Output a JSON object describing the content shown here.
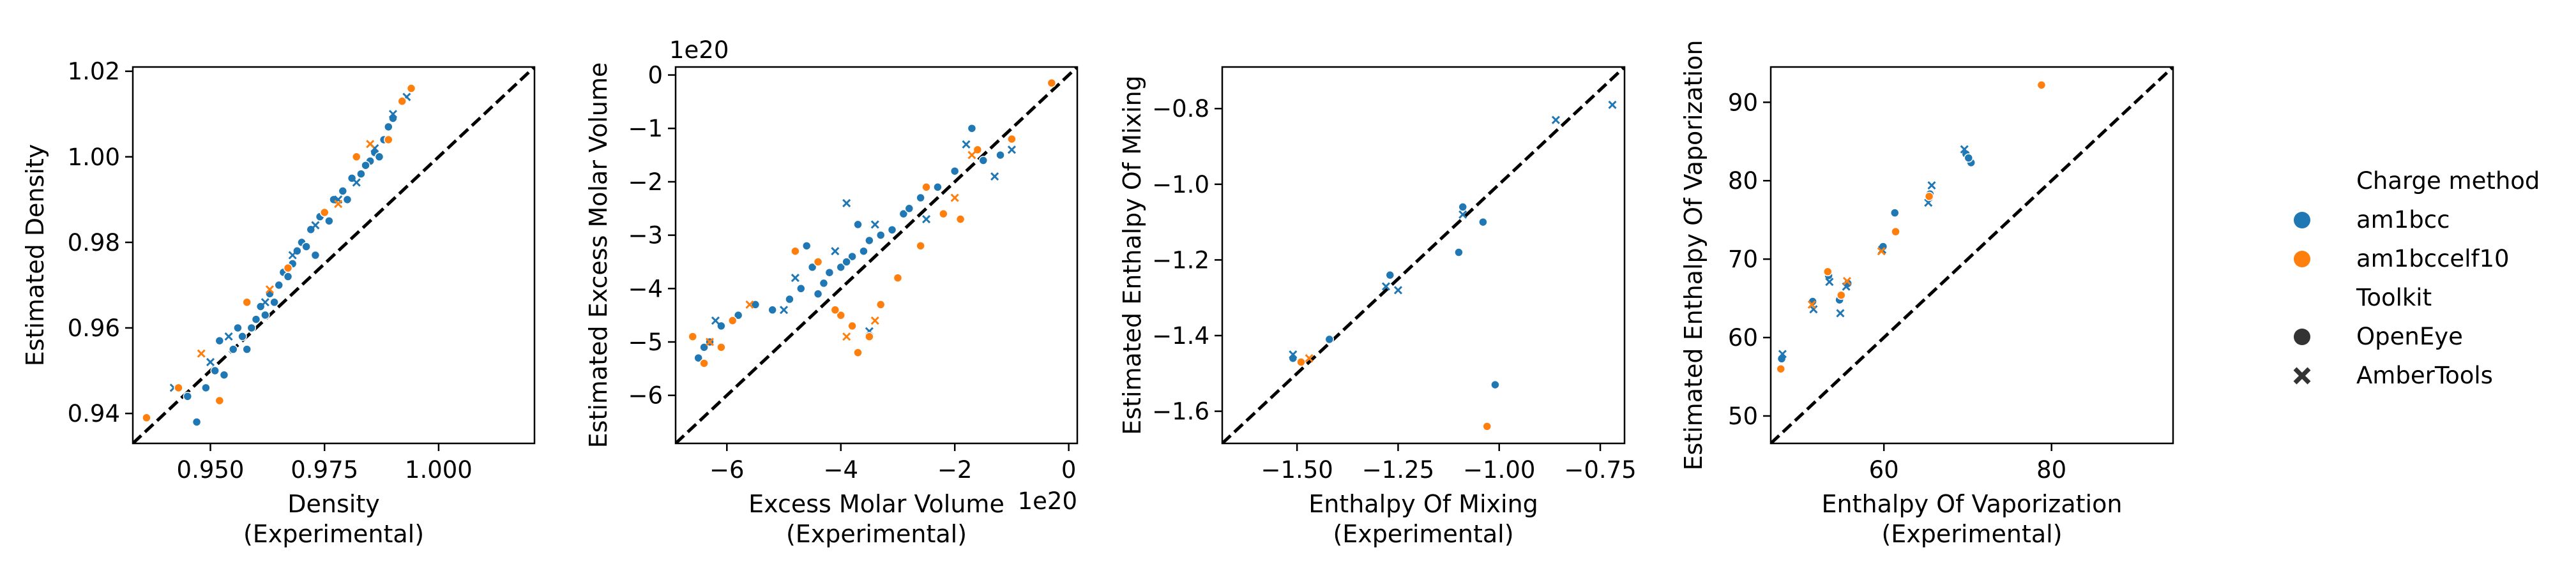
{
  "colors": {
    "am1bcc": "#1f77b4",
    "am1bccelf10": "#ff7f0e",
    "identity": "#000000"
  },
  "legend": {
    "placement": "right",
    "title_charge": "Charge method",
    "charge_methods": [
      "am1bcc",
      "am1bccelf10"
    ],
    "title_toolkit": "Toolkit",
    "toolkits": [
      "OpenEye",
      "AmberTools"
    ]
  },
  "chart_data": [
    {
      "type": "scatter",
      "title": "",
      "xlabel": [
        "Density",
        "(Experimental)"
      ],
      "ylabel": "Estimated Density",
      "xlim": [
        0.933,
        1.021
      ],
      "ylim": [
        0.933,
        1.021
      ],
      "xticks": [
        0.95,
        0.975,
        1.0
      ],
      "xtick_labels": [
        "0.950",
        "0.975",
        "1.000"
      ],
      "yticks": [
        0.94,
        0.96,
        0.98,
        1.0,
        1.02
      ],
      "ytick_labels": [
        "0.94",
        "0.96",
        "0.98",
        "1.00",
        "1.02"
      ],
      "x_offset_label": "",
      "y_offset_label": "",
      "identity_line": true,
      "series": [
        {
          "name": "am1bcc",
          "toolkit": "OpenEye",
          "points": [
            [
              0.945,
              0.944
            ],
            [
              0.947,
              0.938
            ],
            [
              0.949,
              0.946
            ],
            [
              0.951,
              0.95
            ],
            [
              0.953,
              0.949
            ],
            [
              0.955,
              0.955
            ],
            [
              0.957,
              0.958
            ],
            [
              0.959,
              0.96
            ],
            [
              0.96,
              0.962
            ],
            [
              0.962,
              0.963
            ],
            [
              0.963,
              0.968
            ],
            [
              0.965,
              0.97
            ],
            [
              0.966,
              0.973
            ],
            [
              0.968,
              0.975
            ],
            [
              0.969,
              0.978
            ],
            [
              0.97,
              0.98
            ],
            [
              0.972,
              0.983
            ],
            [
              0.974,
              0.986
            ],
            [
              0.975,
              0.987
            ],
            [
              0.977,
              0.99
            ],
            [
              0.979,
              0.992
            ],
            [
              0.981,
              0.995
            ],
            [
              0.983,
              0.996
            ],
            [
              0.985,
              0.999
            ],
            [
              0.986,
              1.001
            ],
            [
              0.988,
              1.004
            ],
            [
              0.989,
              1.007
            ],
            [
              0.99,
              1.009
            ],
            [
              0.952,
              0.957
            ],
            [
              0.956,
              0.96
            ],
            [
              0.961,
              0.965
            ],
            [
              0.967,
              0.972
            ],
            [
              0.971,
              0.979
            ],
            [
              0.976,
              0.985
            ],
            [
              0.98,
              0.99
            ],
            [
              0.984,
              0.998
            ],
            [
              0.987,
              1.0
            ],
            [
              0.958,
              0.955
            ],
            [
              0.964,
              0.966
            ],
            [
              0.973,
              0.977
            ]
          ]
        },
        {
          "name": "am1bcc",
          "toolkit": "AmberTools",
          "points": [
            [
              0.942,
              0.946
            ],
            [
              0.95,
              0.952
            ],
            [
              0.954,
              0.958
            ],
            [
              0.962,
              0.966
            ],
            [
              0.968,
              0.977
            ],
            [
              0.973,
              0.984
            ],
            [
              0.978,
              0.99
            ],
            [
              0.982,
              0.994
            ],
            [
              0.986,
              1.002
            ],
            [
              0.99,
              1.01
            ],
            [
              0.993,
              1.014
            ]
          ]
        },
        {
          "name": "am1bccelf10",
          "toolkit": "OpenEye",
          "points": [
            [
              0.936,
              0.939
            ],
            [
              0.943,
              0.946
            ],
            [
              0.952,
              0.943
            ],
            [
              0.958,
              0.966
            ],
            [
              0.967,
              0.974
            ],
            [
              0.975,
              0.987
            ],
            [
              0.982,
              1.0
            ],
            [
              0.989,
              1.004
            ],
            [
              0.992,
              1.013
            ],
            [
              0.994,
              1.016
            ]
          ]
        },
        {
          "name": "am1bccelf10",
          "toolkit": "AmberTools",
          "points": [
            [
              0.948,
              0.954
            ],
            [
              0.963,
              0.969
            ],
            [
              0.978,
              0.989
            ],
            [
              0.985,
              1.003
            ]
          ]
        }
      ]
    },
    {
      "type": "scatter",
      "title": "",
      "xlabel": [
        "Excess Molar Volume",
        "(Experimental)"
      ],
      "ylabel": "Estimated Excess Molar Volume",
      "xlim": [
        -6.9,
        0.15
      ],
      "ylim": [
        -6.9,
        0.15
      ],
      "xticks": [
        -6,
        -4,
        -2,
        0
      ],
      "xtick_labels": [
        "−6",
        "−4",
        "−2",
        "0"
      ],
      "yticks": [
        -6,
        -5,
        -4,
        -3,
        -2,
        -1,
        0
      ],
      "ytick_labels": [
        "−6",
        "−5",
        "−4",
        "−3",
        "−2",
        "−1",
        "0"
      ],
      "x_offset_label": "1e20",
      "y_offset_label": "1e20",
      "identity_line": true,
      "series": [
        {
          "name": "am1bcc",
          "toolkit": "OpenEye",
          "points": [
            [
              -6.5,
              -5.3
            ],
            [
              -6.3,
              -5.0
            ],
            [
              -6.1,
              -4.7
            ],
            [
              -5.8,
              -4.5
            ],
            [
              -5.5,
              -4.3
            ],
            [
              -5.2,
              -4.4
            ],
            [
              -4.9,
              -4.2
            ],
            [
              -4.7,
              -4.0
            ],
            [
              -4.5,
              -3.6
            ],
            [
              -4.3,
              -3.9
            ],
            [
              -4.2,
              -3.7
            ],
            [
              -4.0,
              -3.6
            ],
            [
              -3.8,
              -3.4
            ],
            [
              -3.6,
              -3.3
            ],
            [
              -3.5,
              -3.1
            ],
            [
              -3.3,
              -3.0
            ],
            [
              -3.1,
              -2.9
            ],
            [
              -2.9,
              -2.6
            ],
            [
              -2.6,
              -2.3
            ],
            [
              -2.3,
              -2.1
            ],
            [
              -2.0,
              -1.8
            ],
            [
              -1.7,
              -1.0
            ],
            [
              -1.5,
              -1.6
            ],
            [
              -1.2,
              -1.5
            ],
            [
              -4.6,
              -3.2
            ],
            [
              -4.4,
              -4.1
            ],
            [
              -3.9,
              -3.5
            ],
            [
              -3.7,
              -2.8
            ],
            [
              -2.8,
              -2.5
            ],
            [
              -6.4,
              -5.1
            ]
          ]
        },
        {
          "name": "am1bcc",
          "toolkit": "AmberTools",
          "points": [
            [
              -6.2,
              -4.6
            ],
            [
              -5.0,
              -4.4
            ],
            [
              -4.8,
              -3.8
            ],
            [
              -4.1,
              -3.3
            ],
            [
              -3.9,
              -2.4
            ],
            [
              -3.4,
              -2.8
            ],
            [
              -2.5,
              -2.7
            ],
            [
              -1.8,
              -1.3
            ],
            [
              -1.3,
              -1.9
            ],
            [
              -1.0,
              -1.4
            ],
            [
              -3.5,
              -4.8
            ]
          ]
        },
        {
          "name": "am1bccelf10",
          "toolkit": "OpenEye",
          "points": [
            [
              -6.6,
              -4.9
            ],
            [
              -6.4,
              -5.4
            ],
            [
              -6.1,
              -5.1
            ],
            [
              -5.9,
              -4.6
            ],
            [
              -4.8,
              -3.3
            ],
            [
              -4.4,
              -3.5
            ],
            [
              -4.0,
              -4.5
            ],
            [
              -3.8,
              -4.7
            ],
            [
              -3.7,
              -5.2
            ],
            [
              -3.5,
              -4.9
            ],
            [
              -3.3,
              -4.3
            ],
            [
              -3.0,
              -3.8
            ],
            [
              -2.6,
              -3.2
            ],
            [
              -2.5,
              -2.1
            ],
            [
              -2.2,
              -2.6
            ],
            [
              -1.9,
              -2.7
            ],
            [
              -1.6,
              -1.4
            ],
            [
              -1.0,
              -1.2
            ],
            [
              -0.3,
              -0.15
            ],
            [
              -4.1,
              -4.4
            ]
          ]
        },
        {
          "name": "am1bccelf10",
          "toolkit": "AmberTools",
          "points": [
            [
              -6.3,
              -5.0
            ],
            [
              -5.6,
              -4.3
            ],
            [
              -3.9,
              -4.9
            ],
            [
              -3.4,
              -4.6
            ],
            [
              -2.0,
              -2.3
            ],
            [
              -1.7,
              -1.5
            ]
          ]
        }
      ]
    },
    {
      "type": "scatter",
      "title": "",
      "xlabel": [
        "Enthalpy Of Mixing",
        "(Experimental)"
      ],
      "ylabel": "Estimated Enthalpy Of Mixing",
      "xlim": [
        -1.685,
        -0.69
      ],
      "ylim": [
        -1.685,
        -0.69
      ],
      "xticks": [
        -1.5,
        -1.25,
        -1.0,
        -0.75
      ],
      "xtick_labels": [
        "−1.50",
        "−1.25",
        "−1.00",
        "−0.75"
      ],
      "yticks": [
        -1.6,
        -1.4,
        -1.2,
        -1.0,
        -0.8
      ],
      "ytick_labels": [
        "−1.6",
        "−1.4",
        "−1.2",
        "−1.0",
        "−0.8"
      ],
      "x_offset_label": "",
      "y_offset_label": "",
      "identity_line": true,
      "series": [
        {
          "name": "am1bcc",
          "toolkit": "OpenEye",
          "points": [
            [
              -1.51,
              -1.46
            ],
            [
              -1.42,
              -1.41
            ],
            [
              -1.27,
              -1.24
            ],
            [
              -1.1,
              -1.18
            ],
            [
              -1.09,
              -1.06
            ],
            [
              -1.04,
              -1.1
            ],
            [
              -1.01,
              -1.53
            ]
          ]
        },
        {
          "name": "am1bcc",
          "toolkit": "AmberTools",
          "points": [
            [
              -1.51,
              -1.45
            ],
            [
              -1.28,
              -1.27
            ],
            [
              -1.25,
              -1.28
            ],
            [
              -1.09,
              -1.08
            ],
            [
              -0.86,
              -0.83
            ],
            [
              -0.72,
              -0.79
            ]
          ]
        },
        {
          "name": "am1bccelf10",
          "toolkit": "OpenEye",
          "points": [
            [
              -1.49,
              -1.47
            ],
            [
              -1.03,
              -1.64
            ]
          ]
        },
        {
          "name": "am1bccelf10",
          "toolkit": "AmberTools",
          "points": [
            [
              -1.47,
              -1.46
            ]
          ]
        }
      ]
    },
    {
      "type": "scatter",
      "title": "",
      "xlabel": [
        "Enthalpy Of Vaporization",
        "(Experimental)"
      ],
      "ylabel": "Estimated Enthalpy Of Vaporization",
      "xlim": [
        46.5,
        94.5
      ],
      "ylim": [
        46.5,
        94.5
      ],
      "xticks": [
        60,
        80
      ],
      "xtick_labels": [
        "60",
        "80"
      ],
      "yticks": [
        50,
        60,
        70,
        80,
        90
      ],
      "ytick_labels": [
        "50",
        "60",
        "70",
        "80",
        "90"
      ],
      "x_offset_label": "",
      "y_offset_label": "",
      "identity_line": true,
      "series": [
        {
          "name": "am1bcc",
          "toolkit": "OpenEye",
          "points": [
            [
              47.8,
              57.3
            ],
            [
              51.5,
              64.6
            ],
            [
              53.4,
              67.9
            ],
            [
              54.7,
              64.8
            ],
            [
              55.7,
              66.9
            ],
            [
              59.9,
              71.6
            ],
            [
              61.3,
              75.9
            ],
            [
              65.5,
              78.3
            ],
            [
              69.8,
              83.4
            ],
            [
              70.4,
              82.3
            ],
            [
              70.1,
              82.9
            ]
          ]
        },
        {
          "name": "am1bcc",
          "toolkit": "AmberTools",
          "points": [
            [
              47.9,
              57.9
            ],
            [
              51.6,
              63.6
            ],
            [
              53.5,
              67.1
            ],
            [
              54.8,
              63.1
            ],
            [
              55.5,
              66.5
            ],
            [
              59.8,
              71.2
            ],
            [
              65.3,
              77.2
            ],
            [
              65.7,
              79.4
            ],
            [
              69.6,
              84.0
            ]
          ]
        },
        {
          "name": "am1bccelf10",
          "toolkit": "OpenEye",
          "points": [
            [
              47.7,
              56.0
            ],
            [
              53.3,
              68.4
            ],
            [
              54.9,
              65.4
            ],
            [
              61.4,
              73.5
            ],
            [
              65.4,
              78.0
            ],
            [
              78.8,
              92.2
            ]
          ]
        },
        {
          "name": "am1bccelf10",
          "toolkit": "AmberTools",
          "points": [
            [
              51.4,
              64.2
            ],
            [
              55.6,
              67.2
            ],
            [
              59.7,
              71.0
            ]
          ]
        }
      ]
    }
  ]
}
